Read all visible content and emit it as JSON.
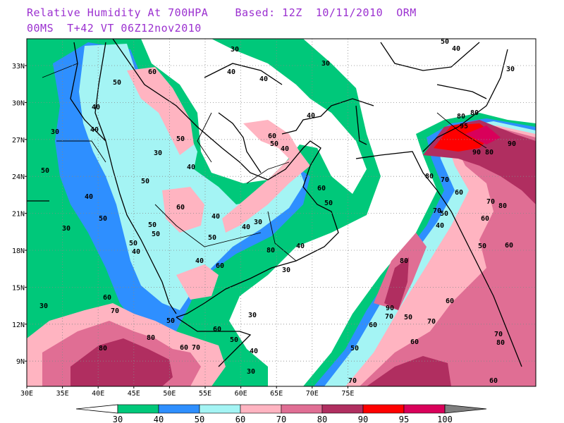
{
  "title": {
    "line1": "Relative Humidity At 700HPA    Based: 12Z  10/11/2010  ORM",
    "line2": "00MS  T+42 VT 06Z12nov2010"
  },
  "map": {
    "lon_labels": [
      "30E",
      "35E",
      "40E",
      "45E",
      "50E",
      "55E",
      "60E",
      "65E",
      "70E",
      "75E"
    ],
    "lat_labels": [
      "33N",
      "30N",
      "27N",
      "24N",
      "21N",
      "18N",
      "15N",
      "12N",
      "9N"
    ],
    "contour_labels": [
      "30",
      "40",
      "50",
      "60",
      "70",
      "80",
      "90",
      "95"
    ]
  },
  "colorbar": {
    "levels": [
      "30",
      "40",
      "50",
      "60",
      "70",
      "80",
      "90",
      "95",
      "100"
    ],
    "colors": [
      "#00c87a",
      "#2e8fff",
      "#a4f4f4",
      "#ffb4c1",
      "#e06e94",
      "#b02e60",
      "#ff0000",
      "#d9005a"
    ],
    "under_color": "#ffffff",
    "over_color": "#7f7f7f"
  },
  "colors": {
    "title": "#9b30d0",
    "land_outline": "#000000",
    "grid": "#888888"
  }
}
